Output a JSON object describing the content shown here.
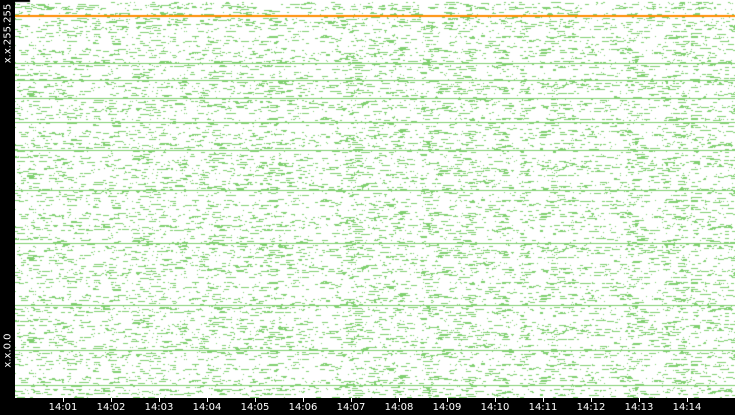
{
  "chart_data": {
    "type": "scatter",
    "y_tick_labels": [
      "x.x.255.255",
      "x.x.0.0"
    ],
    "x_tick_labels": [
      "14:01",
      "14:02",
      "14:03",
      "14:04",
      "14:05",
      "14:06",
      "14:07",
      "14:08",
      "14:09",
      "14:10",
      "14:11",
      "14:12",
      "14:13",
      "14:14"
    ],
    "grid": false,
    "colors": {
      "points": "#7fcf6f",
      "highlight": "#ff8c00",
      "background": "#ffffff",
      "frame": "#000000"
    }
  }
}
